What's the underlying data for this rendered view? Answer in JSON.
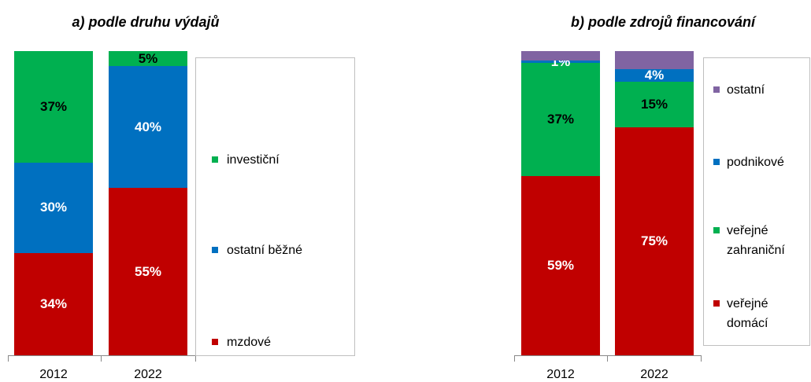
{
  "chart_data": [
    {
      "type": "bar",
      "stacking": "percent",
      "title": "a) podle druhu výdajů",
      "categories": [
        "2012",
        "2022"
      ],
      "series": [
        {
          "name": "mzdové",
          "color": "#c00000",
          "label_color": "#ffffff",
          "values": [
            34,
            55
          ],
          "value_labels": [
            "34%",
            "55%"
          ]
        },
        {
          "name": "ostatní běžné",
          "color": "#0070c0",
          "label_color": "#ffffff",
          "values": [
            30,
            40
          ],
          "value_labels": [
            "30%",
            "40%"
          ]
        },
        {
          "name": "investiční",
          "color": "#00b050",
          "label_color": "#000000",
          "values": [
            37,
            5
          ],
          "value_labels": [
            "37%",
            "5%"
          ]
        }
      ]
    },
    {
      "type": "bar",
      "stacking": "percent",
      "title": "b) podle zdrojů financování",
      "categories": [
        "2012",
        "2022"
      ],
      "series": [
        {
          "name": "veřejné domácí",
          "color": "#c00000",
          "label_color": "#ffffff",
          "values": [
            59,
            75
          ],
          "value_labels": [
            "59%",
            "75%"
          ]
        },
        {
          "name": "veřejné zahraniční",
          "color": "#00b050",
          "label_color": "#000000",
          "values": [
            37,
            15
          ],
          "value_labels": [
            "37%",
            "15%"
          ]
        },
        {
          "name": "podnikové",
          "color": "#0070c0",
          "label_color": "#ffffff",
          "values": [
            1,
            4
          ],
          "value_labels": [
            "1%",
            "4%"
          ]
        },
        {
          "name": "ostatní",
          "color": "#8064a2",
          "label_color": "#ffffff",
          "values": [
            3,
            6
          ],
          "value_labels": [
            null,
            null
          ]
        }
      ]
    }
  ]
}
